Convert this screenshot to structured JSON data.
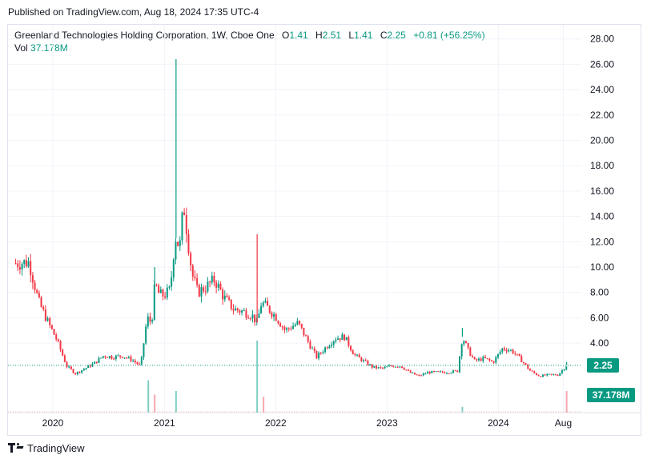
{
  "header": {
    "published": "Published on TradingView.com, Aug 18, 2024 17:35 UTC-4"
  },
  "legend": {
    "symbol": "Greenland Technologies Holding Corporation, 1W, Cboe One",
    "open_label": "O",
    "open": "1.41",
    "high_label": "H",
    "high": "2.51",
    "low_label": "L",
    "low": "1.41",
    "close_label": "C",
    "close": "2.25",
    "change": "+0.81 (+56.25%)",
    "vol_label": "Vol",
    "vol": "37.178M"
  },
  "footer": {
    "brand": "TradingView"
  },
  "colors": {
    "up": "#089981",
    "down": "#f23645",
    "grid": "#f0f3fa",
    "text": "#131722",
    "badge_text": "#ffffff"
  },
  "chart_data": {
    "type": "candlestick",
    "interval": "1W",
    "y_axis": {
      "min": 0,
      "max": 28,
      "ticks": [
        "4.00",
        "6.00",
        "8.00",
        "10.00",
        "12.00",
        "14.00",
        "16.00",
        "18.00",
        "20.00",
        "22.00",
        "24.00",
        "26.00",
        "28.00"
      ]
    },
    "x_axis": {
      "labels": [
        "2020",
        "2021",
        "2022",
        "2023",
        "2024",
        "Aug"
      ]
    },
    "last_price_label": "2.25",
    "last_volume_label": "37.178M",
    "price_path": [
      [
        "2019-09-01",
        10.3
      ],
      [
        "2019-10-15",
        10.4
      ],
      [
        "2019-11-15",
        7.3
      ],
      [
        "2019-12-15",
        5.7
      ],
      [
        "2020-01-15",
        4.2
      ],
      [
        "2020-02-15",
        2.2
      ],
      [
        "2020-03-15",
        1.6
      ],
      [
        "2020-04-15",
        2.0
      ],
      [
        "2020-05-15",
        2.4
      ],
      [
        "2020-06-15",
        3.0
      ],
      [
        "2020-07-15",
        2.9
      ],
      [
        "2020-08-15",
        3.0
      ],
      [
        "2020-09-15",
        2.7
      ],
      [
        "2020-10-15",
        2.2
      ],
      [
        "2020-11-05",
        6.0
      ],
      [
        "2020-11-20",
        5.6
      ],
      [
        "2020-12-01",
        8.7
      ],
      [
        "2020-12-15",
        7.8
      ],
      [
        "2021-01-01",
        7.8
      ],
      [
        "2021-01-20",
        8.2
      ],
      [
        "2021-02-05",
        12.5
      ],
      [
        "2021-02-20",
        11.5
      ],
      [
        "2021-03-05",
        15.0
      ],
      [
        "2021-03-15",
        13.0
      ],
      [
        "2021-04-01",
        9.5
      ],
      [
        "2021-04-20",
        8.0
      ],
      [
        "2021-05-15",
        8.4
      ],
      [
        "2021-06-15",
        9.0
      ],
      [
        "2021-07-15",
        7.6
      ],
      [
        "2021-08-15",
        6.7
      ],
      [
        "2021-09-15",
        6.5
      ],
      [
        "2021-10-15",
        6.2
      ],
      [
        "2021-11-01",
        5.6
      ],
      [
        "2021-11-15",
        7.2
      ],
      [
        "2021-12-01",
        6.9
      ],
      [
        "2022-01-01",
        6.1
      ],
      [
        "2022-02-01",
        5.0
      ],
      [
        "2022-03-15",
        5.6
      ],
      [
        "2022-04-15",
        4.2
      ],
      [
        "2022-05-15",
        2.9
      ],
      [
        "2022-06-15",
        3.7
      ],
      [
        "2022-07-15",
        4.4
      ],
      [
        "2022-08-15",
        4.5
      ],
      [
        "2022-09-15",
        3.1
      ],
      [
        "2022-10-15",
        2.6
      ],
      [
        "2022-11-15",
        2.1
      ],
      [
        "2022-12-15",
        2.0
      ],
      [
        "2023-01-15",
        2.2
      ],
      [
        "2023-02-15",
        2.2
      ],
      [
        "2023-03-15",
        1.7
      ],
      [
        "2023-04-15",
        1.4
      ],
      [
        "2023-05-15",
        1.7
      ],
      [
        "2023-06-15",
        1.7
      ],
      [
        "2023-07-15",
        1.7
      ],
      [
        "2023-08-20",
        1.8
      ],
      [
        "2023-09-05",
        4.5
      ],
      [
        "2023-09-25",
        3.4
      ],
      [
        "2023-10-15",
        2.6
      ],
      [
        "2023-11-15",
        2.8
      ],
      [
        "2023-12-15",
        2.5
      ],
      [
        "2024-01-15",
        3.6
      ],
      [
        "2024-02-15",
        3.4
      ],
      [
        "2024-03-15",
        2.7
      ],
      [
        "2024-04-15",
        1.8
      ],
      [
        "2024-05-15",
        1.4
      ],
      [
        "2024-06-15",
        1.5
      ],
      [
        "2024-07-15",
        1.5
      ],
      [
        "2024-08-12",
        2.25
      ]
    ],
    "spikes": [
      [
        "2020-11-30",
        10.0
      ],
      [
        "2021-02-08",
        26.4
      ],
      [
        "2021-11-01",
        12.6
      ],
      [
        "2023-09-05",
        5.2
      ],
      [
        "2024-08-12",
        2.51
      ]
    ],
    "volume_spikes": [
      [
        "2020-11-09",
        0.45
      ],
      [
        "2020-11-30",
        0.25
      ],
      [
        "2021-02-08",
        0.3
      ],
      [
        "2021-11-01",
        1.0
      ],
      [
        "2021-11-22",
        0.22
      ],
      [
        "2023-09-05",
        0.08
      ],
      [
        "2024-08-12",
        0.3
      ]
    ]
  }
}
